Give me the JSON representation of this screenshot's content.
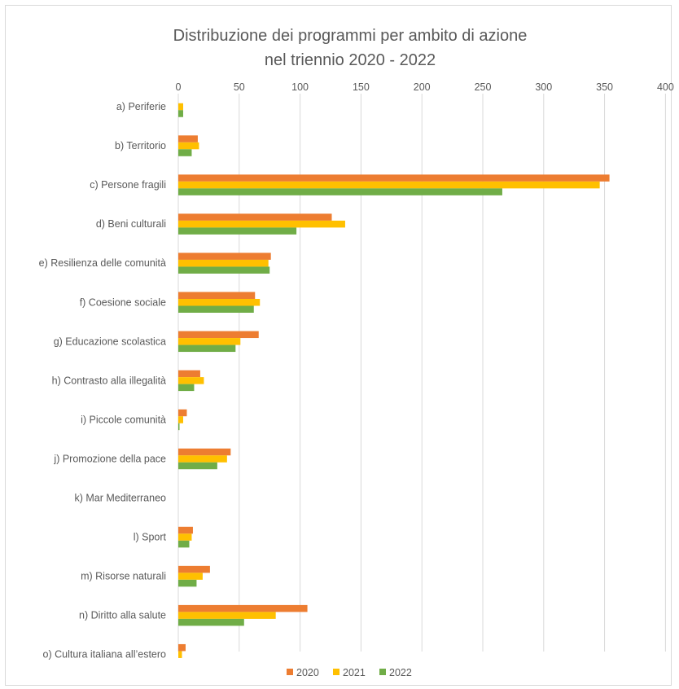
{
  "chart_data": {
    "type": "bar",
    "orientation": "horizontal",
    "title": [
      "Distribuzione dei programmi per ambito di azione",
      "nel triennio 2020 - 2022"
    ],
    "xlim": [
      0,
      400
    ],
    "xticks": [
      "0",
      "50",
      "100",
      "150",
      "200",
      "250",
      "300",
      "350",
      "400"
    ],
    "grid": "vertical",
    "legend_position": "bottom",
    "categories": [
      "a) Periferie",
      "b) Territorio",
      "c) Persone fragili",
      "d) Beni culturali",
      "e) Resilienza delle comunità",
      "f) Coesione sociale",
      "g) Educazione scolastica",
      "h) Contrasto alla illegalità",
      "i) Piccole comunità",
      "j) Promozione della pace",
      "k)  Mar Mediterraneo",
      "l) Sport",
      "m) Risorse naturali",
      "n) Diritto alla salute",
      "o) Cultura italiana all’estero"
    ],
    "series": [
      {
        "name": "2020",
        "color": "#ED7D31",
        "values": [
          0,
          16,
          354,
          126,
          76,
          63,
          66,
          18,
          7,
          43,
          0,
          12,
          26,
          106,
          6
        ]
      },
      {
        "name": "2021",
        "color": "#FFC000",
        "values": [
          4,
          17,
          346,
          137,
          74,
          67,
          51,
          21,
          4,
          40,
          0,
          11,
          20,
          80,
          3
        ]
      },
      {
        "name": "2022",
        "color": "#70AD47",
        "values": [
          4,
          11,
          266,
          97,
          75,
          62,
          47,
          13,
          1,
          32,
          0,
          9,
          15,
          54,
          0
        ]
      }
    ]
  }
}
